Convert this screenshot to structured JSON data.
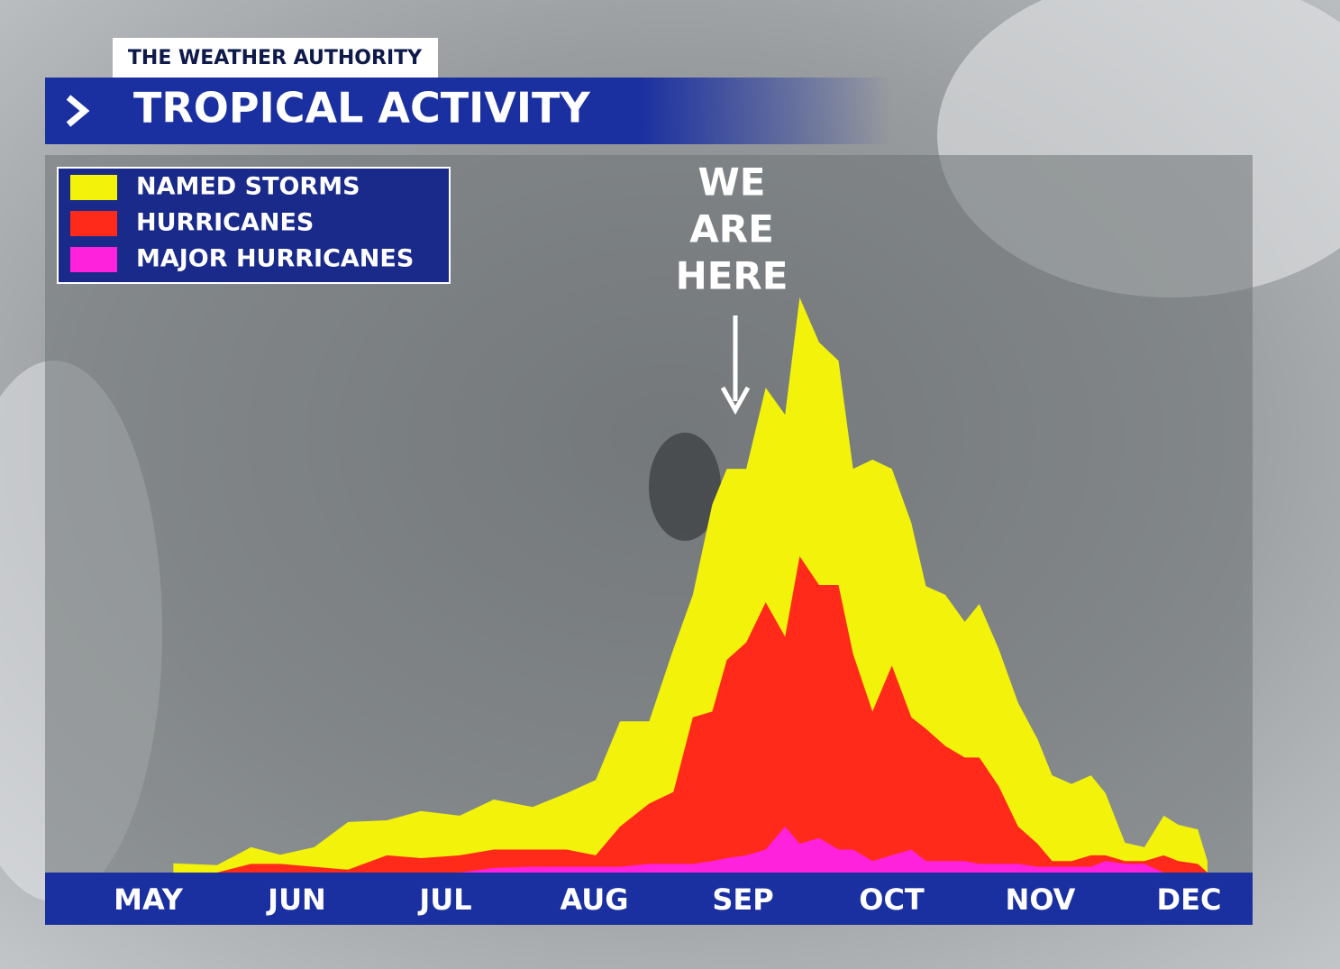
{
  "header": {
    "brand": "THE WEATHER AUTHORITY",
    "title": "TROPICAL ACTIVITY"
  },
  "chart_data": {
    "type": "area",
    "categories": [
      "MAY",
      "JUN",
      "JUL",
      "AUG",
      "SEP",
      "OCT",
      "NOV",
      "DEC"
    ],
    "xlim": [
      0,
      245
    ],
    "ylim": [
      0,
      100
    ],
    "x": [
      19,
      28,
      35,
      41,
      48,
      55,
      63,
      70,
      78,
      85,
      93,
      100,
      106,
      111,
      117,
      122,
      126,
      130,
      133,
      137,
      141,
      145,
      148,
      152,
      156,
      159,
      163,
      167,
      171,
      174,
      178,
      182,
      185,
      189,
      193,
      197,
      200,
      204,
      208,
      211,
      215,
      219,
      223,
      226,
      230,
      232
    ],
    "series": [
      {
        "name": "NAMED STORMS",
        "color": "#f2f20a",
        "values": [
          1.6,
          1.3,
          4.4,
          3.1,
          4.4,
          8.8,
          9.1,
          10.7,
          9.9,
          12.7,
          11.4,
          13.8,
          16.1,
          26.3,
          26.3,
          38.9,
          48.3,
          64,
          70.2,
          70.2,
          84.3,
          79.6,
          100,
          92.2,
          89,
          70.2,
          71.8,
          70.2,
          60.8,
          49.8,
          48.3,
          43.6,
          46.7,
          38.9,
          29.5,
          23.2,
          16.9,
          15.4,
          16.9,
          13.8,
          5.2,
          4.4,
          9.9,
          8.3,
          7.5,
          2
        ]
      },
      {
        "name": "HURRICANES",
        "color": "#ff2a1a",
        "values": [
          0,
          0,
          1.5,
          1.5,
          1,
          0.5,
          3,
          2.5,
          3,
          4,
          4,
          4,
          3,
          8,
          12,
          14,
          27,
          28,
          37,
          40,
          47,
          41,
          55,
          50,
          50,
          38,
          28,
          36,
          27,
          25,
          22,
          20,
          20,
          15,
          8,
          5,
          2,
          2,
          3,
          3,
          2,
          2,
          3,
          2,
          1.5,
          0
        ]
      },
      {
        "name": "MAJOR HURRICANES",
        "color": "#ff22dd",
        "values": [
          0,
          0,
          0,
          0,
          0,
          0,
          0,
          0,
          0,
          0.8,
          1,
          1,
          1,
          1,
          1.5,
          1.5,
          1.5,
          2,
          2.5,
          3,
          4,
          8,
          5,
          6,
          4,
          4,
          2,
          3,
          4,
          2,
          2,
          2,
          1.5,
          1.5,
          1.5,
          1,
          1,
          1,
          1,
          2,
          1.5,
          1.5,
          0,
          0,
          0,
          0
        ]
      }
    ],
    "annotation": [
      "WE",
      "ARE",
      "HERE"
    ]
  }
}
